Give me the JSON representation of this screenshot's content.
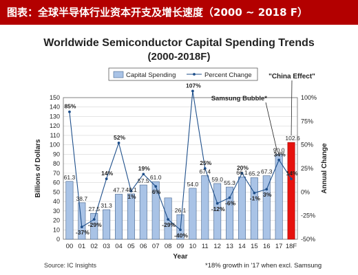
{
  "banner": {
    "title": "图表：全球半导体行业资本开支及增长速度（2000 ~ 2018 F）"
  },
  "source": "Source: IC Insights",
  "footnote": "*18% growth in '17 when excl. Samsung",
  "colors": {
    "banner": "#b30000",
    "bar": "#a9c3e6",
    "bar_stroke": "#43628c",
    "bar_forecast": "#e6120e",
    "line": "#1d4e8a",
    "grid": "#d4d4d4"
  },
  "chart_data": {
    "type": "bar",
    "title": "Worldwide Semiconductor Capital Spending Trends",
    "subtitle": "(2000-2018F)",
    "xlabel": "Year",
    "ylabel": "Billions of Dollars",
    "y2label": "Annual Change",
    "categories": [
      "00",
      "01",
      "02",
      "03",
      "04",
      "05",
      "06",
      "07",
      "08",
      "09",
      "10",
      "11",
      "12",
      "13",
      "14",
      "15",
      "16",
      "17",
      "18F"
    ],
    "ylim": [
      0,
      150
    ],
    "yticks": [
      0,
      10,
      20,
      30,
      40,
      50,
      60,
      70,
      80,
      90,
      100,
      110,
      120,
      130,
      140,
      150
    ],
    "y2lim": [
      -50,
      100
    ],
    "y2ticks": [
      "-50%",
      "-25%",
      "0%",
      "25%",
      "50%",
      "75%",
      "100%"
    ],
    "grid": true,
    "legend": "top-center",
    "series": [
      {
        "name": "Capital Spending",
        "kind": "bar",
        "values": [
          61.3,
          38.7,
          27.5,
          31.3,
          47.7,
          48.1,
          57.5,
          61.0,
          43.8,
          26.1,
          54.0,
          67.4,
          59.0,
          55.3,
          66.1,
          65.2,
          67.3,
          90.0,
          102.6
        ],
        "labels": [
          "61.3",
          "38.7",
          "27.5",
          "31.3",
          "47.7",
          "48.1",
          "57.5",
          "61.0",
          "",
          "26.1",
          "54.0",
          "67.4",
          "59.0",
          "55.3",
          "66.1",
          "65.2",
          "67.3",
          "90.0",
          "102.6"
        ]
      },
      {
        "name": "Percent Change",
        "kind": "line",
        "values": [
          85,
          -37,
          -29,
          14,
          52,
          1,
          19,
          6,
          -29,
          -40,
          107,
          25,
          -12,
          -6,
          20,
          -1,
          3,
          34,
          14
        ],
        "labels": [
          "85%",
          "-37%",
          "-29%",
          "14%",
          "52%",
          "1%",
          "19%",
          "6%",
          "-29%",
          "-40%",
          "107%",
          "25%",
          "-12%",
          "-6%",
          "20%",
          "-1%",
          "3%",
          "34%",
          "14%"
        ]
      }
    ],
    "annotations": [
      "Samsung Bubble*",
      "\"China Effect\""
    ]
  }
}
